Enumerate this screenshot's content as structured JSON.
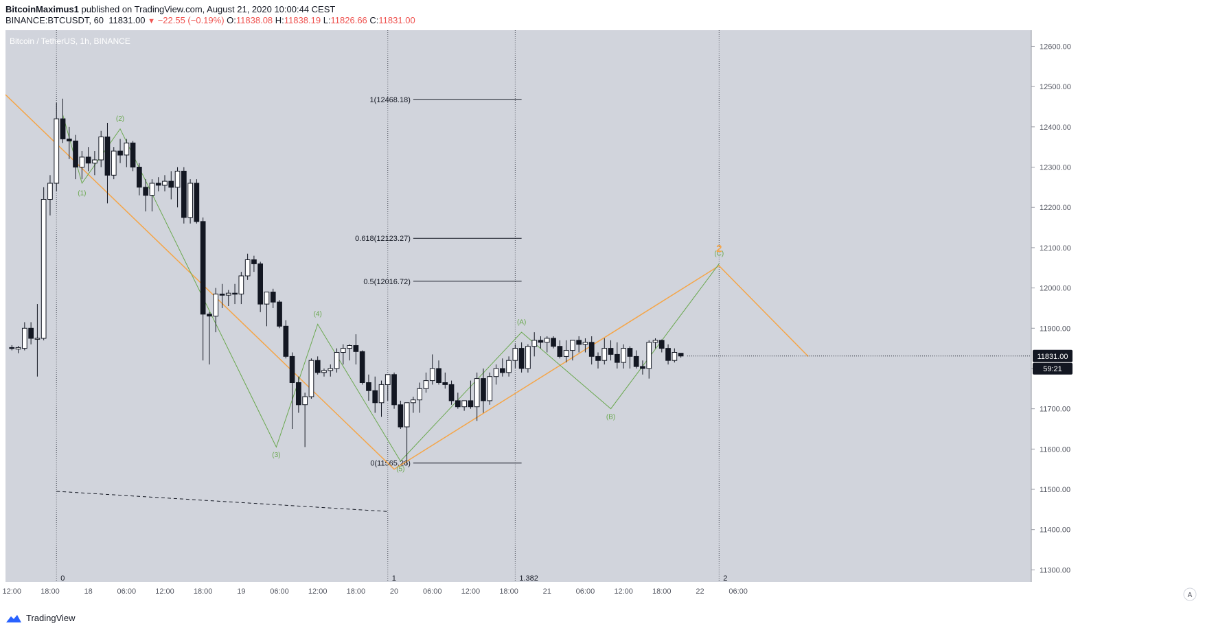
{
  "header": {
    "author": "BitcoinMaximus1",
    "published_text": "published on TradingView.com, August 21, 2020 10:00:44 CEST",
    "symbol_line": "BINANCE:BTCUSDT, 60",
    "last": "11831.00",
    "change": "−22.55 (−0.19%)",
    "o_label": "O:",
    "o_val": "11838.08",
    "h_label": "H:",
    "h_val": "11838.19",
    "l_label": "L:",
    "l_val": "11826.66",
    "c_label": "C:",
    "c_val": "11831.00"
  },
  "footer": {
    "brand": "TradingView"
  },
  "colors": {
    "plot_bg": "#d1d4dc",
    "grid_line": "#9598a1",
    "orange": "#f5a547",
    "green": "#6aa84f",
    "candle_up": "#ffffff",
    "candle_down": "#131722",
    "price_tag": "#131722"
  },
  "chart_data": {
    "type": "candlestick",
    "title": "Bitcoin / TetherUS, 1h, BINANCE",
    "ylim": [
      11270,
      12640
    ],
    "y_ticks": [
      12600,
      12500,
      12400,
      12300,
      12200,
      12100,
      12000,
      11900,
      11800,
      11700,
      11600,
      11500,
      11400,
      11300
    ],
    "y_tick_labels": [
      "12600.00",
      "12500.00",
      "12400.00",
      "12300.00",
      "12200.00",
      "12100.00",
      "12000.00",
      "11900.00",
      "11800.00",
      "11700.00",
      "11600.00",
      "11500.00",
      "11400.00",
      "11300.00"
    ],
    "x_range": [
      -37,
      124
    ],
    "x_ticks": [
      {
        "x": -36,
        "label": "12:00"
      },
      {
        "x": -30,
        "label": "18:00"
      },
      {
        "x": -24,
        "label": "18"
      },
      {
        "x": -18,
        "label": "06:00"
      },
      {
        "x": -12,
        "label": "12:00"
      },
      {
        "x": -6,
        "label": "18:00"
      },
      {
        "x": 0,
        "label": "19"
      },
      {
        "x": 6,
        "label": "06:00"
      },
      {
        "x": 12,
        "label": "12:00"
      },
      {
        "x": 18,
        "label": "18:00"
      },
      {
        "x": 24,
        "label": "20"
      },
      {
        "x": 30,
        "label": "06:00"
      },
      {
        "x": 36,
        "label": "12:00"
      },
      {
        "x": 42,
        "label": "18:00"
      },
      {
        "x": 48,
        "label": "21"
      },
      {
        "x": 54,
        "label": "06:00"
      },
      {
        "x": 60,
        "label": "12:00"
      },
      {
        "x": 66,
        "label": "18:00"
      },
      {
        "x": 72,
        "label": "22"
      },
      {
        "x": 78,
        "label": "06:00"
      }
    ],
    "candles": [
      {
        "o": 11852,
        "h": 11858,
        "l": 11845,
        "c": 11850
      },
      {
        "o": 11848,
        "h": 11856,
        "l": 11838,
        "c": 11852
      },
      {
        "o": 11850,
        "h": 11915,
        "l": 11845,
        "c": 11900
      },
      {
        "o": 11900,
        "h": 11915,
        "l": 11860,
        "c": 11875
      },
      {
        "o": 11875,
        "h": 11960,
        "l": 11780,
        "c": 11875
      },
      {
        "o": 11875,
        "h": 12250,
        "l": 11870,
        "c": 12220
      },
      {
        "o": 12220,
        "h": 12280,
        "l": 12180,
        "c": 12260
      },
      {
        "o": 12260,
        "h": 12460,
        "l": 12240,
        "c": 12420
      },
      {
        "o": 12420,
        "h": 12470,
        "l": 12360,
        "c": 12370
      },
      {
        "o": 12370,
        "h": 12400,
        "l": 12320,
        "c": 12365
      },
      {
        "o": 12365,
        "h": 12380,
        "l": 12270,
        "c": 12300
      },
      {
        "o": 12300,
        "h": 12340,
        "l": 12270,
        "c": 12325
      },
      {
        "o": 12325,
        "h": 12350,
        "l": 12290,
        "c": 12310
      },
      {
        "o": 12310,
        "h": 12340,
        "l": 12280,
        "c": 12318
      },
      {
        "o": 12318,
        "h": 12390,
        "l": 12300,
        "c": 12375
      },
      {
        "o": 12375,
        "h": 12410,
        "l": 12210,
        "c": 12280
      },
      {
        "o": 12280,
        "h": 12350,
        "l": 12270,
        "c": 12340
      },
      {
        "o": 12340,
        "h": 12370,
        "l": 12310,
        "c": 12330
      },
      {
        "o": 12330,
        "h": 12370,
        "l": 12300,
        "c": 12360
      },
      {
        "o": 12360,
        "h": 12365,
        "l": 12290,
        "c": 12300
      },
      {
        "o": 12300,
        "h": 12310,
        "l": 12230,
        "c": 12250
      },
      {
        "o": 12250,
        "h": 12270,
        "l": 12190,
        "c": 12230
      },
      {
        "o": 12230,
        "h": 12270,
        "l": 12190,
        "c": 12260
      },
      {
        "o": 12260,
        "h": 12275,
        "l": 12240,
        "c": 12255
      },
      {
        "o": 12255,
        "h": 12280,
        "l": 12240,
        "c": 12265
      },
      {
        "o": 12265,
        "h": 12290,
        "l": 12220,
        "c": 12250
      },
      {
        "o": 12250,
        "h": 12300,
        "l": 12200,
        "c": 12290
      },
      {
        "o": 12290,
        "h": 12300,
        "l": 12160,
        "c": 12175
      },
      {
        "o": 12175,
        "h": 12270,
        "l": 12160,
        "c": 12260
      },
      {
        "o": 12260,
        "h": 12270,
        "l": 12160,
        "c": 12165
      },
      {
        "o": 12165,
        "h": 12175,
        "l": 11820,
        "c": 11935
      },
      {
        "o": 11935,
        "h": 11940,
        "l": 11810,
        "c": 11930
      },
      {
        "o": 11930,
        "h": 12000,
        "l": 11890,
        "c": 11985
      },
      {
        "o": 11985,
        "h": 12010,
        "l": 11950,
        "c": 11982
      },
      {
        "o": 11982,
        "h": 11995,
        "l": 11955,
        "c": 11987
      },
      {
        "o": 11987,
        "h": 12010,
        "l": 11960,
        "c": 11985
      },
      {
        "o": 11985,
        "h": 12040,
        "l": 11960,
        "c": 12030
      },
      {
        "o": 12030,
        "h": 12085,
        "l": 12020,
        "c": 12070
      },
      {
        "o": 12070,
        "h": 12080,
        "l": 12040,
        "c": 12060
      },
      {
        "o": 12060,
        "h": 12065,
        "l": 11940,
        "c": 11960
      },
      {
        "o": 11960,
        "h": 11990,
        "l": 11905,
        "c": 11990
      },
      {
        "o": 11990,
        "h": 11998,
        "l": 11950,
        "c": 11965
      },
      {
        "o": 11965,
        "h": 11970,
        "l": 11900,
        "c": 11905
      },
      {
        "o": 11905,
        "h": 11920,
        "l": 11825,
        "c": 11830
      },
      {
        "o": 11830,
        "h": 11840,
        "l": 11650,
        "c": 11765
      },
      {
        "o": 11765,
        "h": 11780,
        "l": 11690,
        "c": 11710
      },
      {
        "o": 11710,
        "h": 11740,
        "l": 11605,
        "c": 11730
      },
      {
        "o": 11730,
        "h": 11825,
        "l": 11725,
        "c": 11820
      },
      {
        "o": 11820,
        "h": 11830,
        "l": 11785,
        "c": 11790
      },
      {
        "o": 11790,
        "h": 11800,
        "l": 11780,
        "c": 11795
      },
      {
        "o": 11795,
        "h": 11810,
        "l": 11780,
        "c": 11800
      },
      {
        "o": 11800,
        "h": 11850,
        "l": 11790,
        "c": 11840
      },
      {
        "o": 11840,
        "h": 11860,
        "l": 11810,
        "c": 11850
      },
      {
        "o": 11850,
        "h": 11860,
        "l": 11820,
        "c": 11857
      },
      {
        "o": 11857,
        "h": 11885,
        "l": 11810,
        "c": 11842
      },
      {
        "o": 11842,
        "h": 11845,
        "l": 11760,
        "c": 11765
      },
      {
        "o": 11765,
        "h": 11785,
        "l": 11720,
        "c": 11745
      },
      {
        "o": 11745,
        "h": 11780,
        "l": 11690,
        "c": 11715
      },
      {
        "o": 11715,
        "h": 11770,
        "l": 11680,
        "c": 11760
      },
      {
        "o": 11760,
        "h": 11785,
        "l": 11720,
        "c": 11785
      },
      {
        "o": 11785,
        "h": 11790,
        "l": 11700,
        "c": 11710
      },
      {
        "o": 11710,
        "h": 11720,
        "l": 11650,
        "c": 11655
      },
      {
        "o": 11655,
        "h": 11715,
        "l": 11560,
        "c": 11715
      },
      {
        "o": 11715,
        "h": 11730,
        "l": 11690,
        "c": 11722
      },
      {
        "o": 11722,
        "h": 11765,
        "l": 11690,
        "c": 11750
      },
      {
        "o": 11750,
        "h": 11790,
        "l": 11740,
        "c": 11770
      },
      {
        "o": 11770,
        "h": 11835,
        "l": 11760,
        "c": 11800
      },
      {
        "o": 11800,
        "h": 11820,
        "l": 11760,
        "c": 11765
      },
      {
        "o": 11765,
        "h": 11790,
        "l": 11750,
        "c": 11760
      },
      {
        "o": 11760,
        "h": 11770,
        "l": 11710,
        "c": 11720
      },
      {
        "o": 11720,
        "h": 11740,
        "l": 11700,
        "c": 11705
      },
      {
        "o": 11705,
        "h": 11720,
        "l": 11695,
        "c": 11720
      },
      {
        "o": 11720,
        "h": 11770,
        "l": 11700,
        "c": 11705
      },
      {
        "o": 11705,
        "h": 11790,
        "l": 11670,
        "c": 11775
      },
      {
        "o": 11775,
        "h": 11800,
        "l": 11690,
        "c": 11720
      },
      {
        "o": 11720,
        "h": 11790,
        "l": 11710,
        "c": 11780
      },
      {
        "o": 11780,
        "h": 11810,
        "l": 11760,
        "c": 11800
      },
      {
        "o": 11800,
        "h": 11825,
        "l": 11780,
        "c": 11790
      },
      {
        "o": 11790,
        "h": 11830,
        "l": 11780,
        "c": 11820
      },
      {
        "o": 11820,
        "h": 11860,
        "l": 11800,
        "c": 11850
      },
      {
        "o": 11850,
        "h": 11865,
        "l": 11790,
        "c": 11800
      },
      {
        "o": 11800,
        "h": 11860,
        "l": 11790,
        "c": 11855
      },
      {
        "o": 11855,
        "h": 11890,
        "l": 11830,
        "c": 11870
      },
      {
        "o": 11870,
        "h": 11880,
        "l": 11850,
        "c": 11865
      },
      {
        "o": 11865,
        "h": 11880,
        "l": 11840,
        "c": 11875
      },
      {
        "o": 11875,
        "h": 11880,
        "l": 11850,
        "c": 11855
      },
      {
        "o": 11855,
        "h": 11870,
        "l": 11825,
        "c": 11830
      },
      {
        "o": 11830,
        "h": 11870,
        "l": 11815,
        "c": 11845
      },
      {
        "o": 11845,
        "h": 11865,
        "l": 11820,
        "c": 11870
      },
      {
        "o": 11870,
        "h": 11880,
        "l": 11840,
        "c": 11860
      },
      {
        "o": 11860,
        "h": 11875,
        "l": 11840,
        "c": 11865
      },
      {
        "o": 11865,
        "h": 11880,
        "l": 11810,
        "c": 11830
      },
      {
        "o": 11830,
        "h": 11840,
        "l": 11800,
        "c": 11820
      },
      {
        "o": 11820,
        "h": 11875,
        "l": 11810,
        "c": 11850
      },
      {
        "o": 11850,
        "h": 11870,
        "l": 11820,
        "c": 11835
      },
      {
        "o": 11835,
        "h": 11865,
        "l": 11800,
        "c": 11815
      },
      {
        "o": 11815,
        "h": 11860,
        "l": 11800,
        "c": 11850
      },
      {
        "o": 11850,
        "h": 11855,
        "l": 11800,
        "c": 11830
      },
      {
        "o": 11830,
        "h": 11845,
        "l": 11800,
        "c": 11805
      },
      {
        "o": 11805,
        "h": 11820,
        "l": 11785,
        "c": 11800
      },
      {
        "o": 11800,
        "h": 11870,
        "l": 11775,
        "c": 11865
      },
      {
        "o": 11865,
        "h": 11875,
        "l": 11850,
        "c": 11870
      },
      {
        "o": 11870,
        "h": 11872,
        "l": 11840,
        "c": 11850
      },
      {
        "o": 11850,
        "h": 11860,
        "l": 11810,
        "c": 11820
      },
      {
        "o": 11820,
        "h": 11850,
        "l": 11815,
        "c": 11840
      },
      {
        "o": 11838,
        "h": 11838,
        "l": 11827,
        "c": 11831
      }
    ],
    "orange_wave": [
      {
        "x": -37,
        "y": 12480
      },
      {
        "x": 24,
        "y": 11550
      },
      {
        "x": 75,
        "y": 12055
      },
      {
        "x": 89,
        "y": 11830
      }
    ],
    "green_wave": [
      {
        "x": -28,
        "y": 12430
      },
      {
        "x": -25,
        "y": 12260
      },
      {
        "x": -19,
        "y": 12395
      },
      {
        "x": 5.5,
        "y": 11605
      },
      {
        "x": 12,
        "y": 11910
      },
      {
        "x": 25,
        "y": 11570
      },
      {
        "x": 44,
        "y": 11890
      },
      {
        "x": 58,
        "y": 11700
      },
      {
        "x": 75,
        "y": 12060
      }
    ],
    "wave_labels": [
      {
        "x": -25,
        "y": 12230,
        "text": "(1)",
        "color": "green"
      },
      {
        "x": -19,
        "y": 12415,
        "text": "(2)",
        "color": "green"
      },
      {
        "x": 5.5,
        "y": 11580,
        "text": "(3)",
        "color": "green"
      },
      {
        "x": 12,
        "y": 11930,
        "text": "(4)",
        "color": "green"
      },
      {
        "x": 25,
        "y": 11545,
        "text": "(5)",
        "color": "green"
      },
      {
        "x": 44,
        "y": 11910,
        "text": "(A)",
        "color": "green"
      },
      {
        "x": 58,
        "y": 11675,
        "text": "(B)",
        "color": "green"
      },
      {
        "x": 75,
        "y": 12080,
        "text": "(C)",
        "color": "green"
      },
      {
        "x": 75,
        "y": 12090,
        "text": "2",
        "color": "orange"
      }
    ],
    "fib_levels": [
      {
        "label": "1(12468.18)",
        "value": 12468.18
      },
      {
        "label": "0.618(12123.27)",
        "value": 12123.27
      },
      {
        "label": "0.5(12016.72)",
        "value": 12016.72
      },
      {
        "label": "0(11565.26)",
        "value": 11565.26
      }
    ],
    "fib_time": [
      {
        "x": -29,
        "label": "0"
      },
      {
        "x": 23,
        "label": "1"
      },
      {
        "x": 43,
        "label": "1.382"
      },
      {
        "x": 75,
        "label": "2"
      }
    ],
    "dashed_line": [
      {
        "x": -29,
        "y": 11495
      },
      {
        "x": 23,
        "y": 11445
      }
    ],
    "current_price": {
      "value": 11831,
      "label": "11831.00",
      "countdown": "59:21"
    },
    "axis_corner_label": "A"
  }
}
